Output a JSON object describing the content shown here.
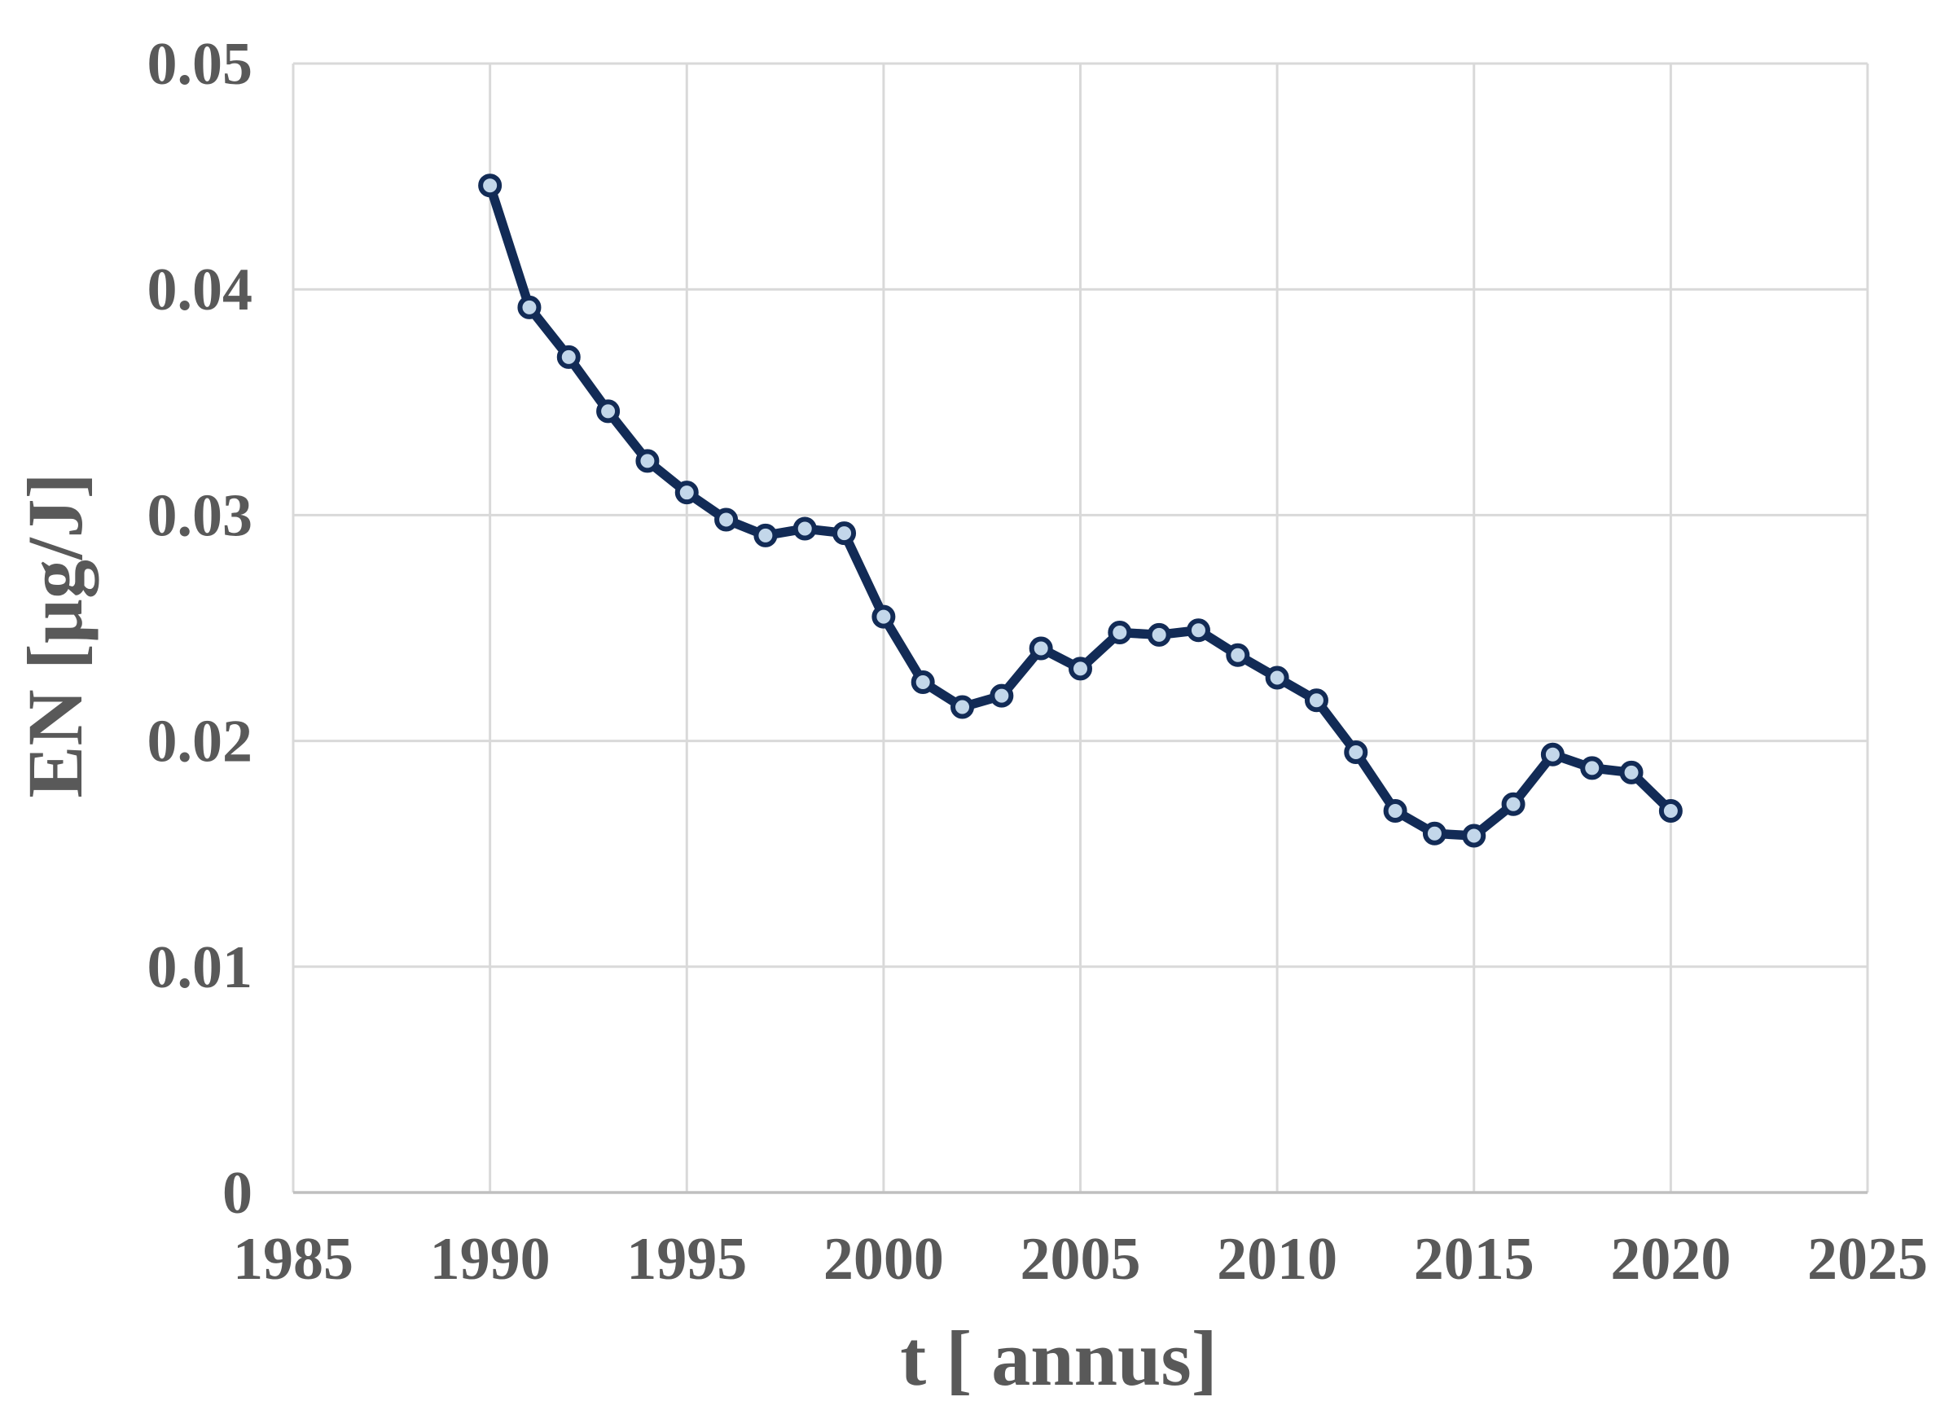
{
  "chart_data": {
    "type": "line",
    "title": "",
    "xlabel": "t [ annus]",
    "ylabel": "EN [µg/J]",
    "xlim": [
      1985,
      2025
    ],
    "ylim": [
      0,
      0.05
    ],
    "grid": true,
    "legend": false,
    "x_ticks": [
      {
        "v": 1985,
        "label": "1985"
      },
      {
        "v": 1990,
        "label": "1990"
      },
      {
        "v": 1995,
        "label": "1995"
      },
      {
        "v": 2000,
        "label": "2000"
      },
      {
        "v": 2005,
        "label": "2005"
      },
      {
        "v": 2010,
        "label": "2010"
      },
      {
        "v": 2015,
        "label": "2015"
      },
      {
        "v": 2020,
        "label": "2020"
      },
      {
        "v": 2025,
        "label": "2025"
      }
    ],
    "y_ticks": [
      {
        "v": 0,
        "label": "0"
      },
      {
        "v": 0.01,
        "label": "0.01"
      },
      {
        "v": 0.02,
        "label": "0.02"
      },
      {
        "v": 0.03,
        "label": "0.03"
      },
      {
        "v": 0.04,
        "label": "0.04"
      },
      {
        "v": 0.05,
        "label": "0.05"
      }
    ],
    "series": [
      {
        "name": "EN",
        "x": [
          1990,
          1991,
          1992,
          1993,
          1994,
          1995,
          1996,
          1997,
          1998,
          1999,
          2000,
          2001,
          2002,
          2003,
          2004,
          2005,
          2006,
          2007,
          2008,
          2009,
          2010,
          2011,
          2012,
          2013,
          2014,
          2015,
          2016,
          2017,
          2018,
          2019,
          2020
        ],
        "values": [
          0.0446,
          0.0392,
          0.037,
          0.0346,
          0.0324,
          0.031,
          0.0298,
          0.0291,
          0.0294,
          0.0292,
          0.0255,
          0.0226,
          0.0215,
          0.022,
          0.0241,
          0.0232,
          0.0248,
          0.0247,
          0.0249,
          0.0238,
          0.0228,
          0.0218,
          0.0195,
          0.0169,
          0.0159,
          0.0158,
          0.0172,
          0.0194,
          0.0188,
          0.0186,
          0.0169
        ]
      }
    ],
    "colors": {
      "line": "#122B56",
      "marker_fill": "#C3D7EA",
      "grid": "#D9D9D9",
      "axis": "#BFBFBF",
      "text": "#595959",
      "background": "#FFFFFF"
    }
  }
}
